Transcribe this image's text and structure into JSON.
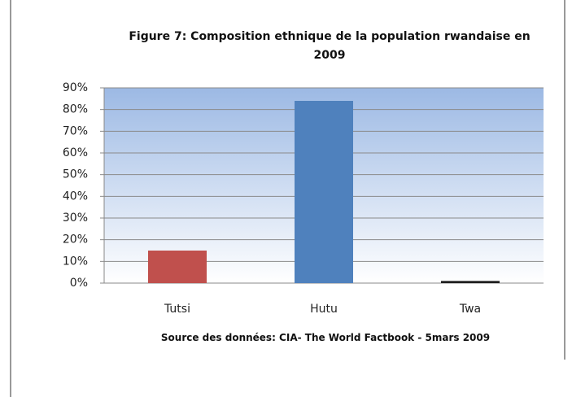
{
  "chart_data": {
    "type": "bar",
    "title": "Figure 7: Composition ethnique de la population rwandaise en 2009",
    "source": "Source des données: CIA- The World Factbook - 5mars 2009",
    "categories": [
      "Tutsi",
      "Hutu",
      "Twa"
    ],
    "values": [
      15,
      84,
      1
    ],
    "colors": [
      "#c0504d",
      "#4f81bd",
      "#1f1f1f"
    ],
    "ylim": [
      0,
      90
    ],
    "yticks": [
      {
        "value": 0,
        "label": "0%"
      },
      {
        "value": 10,
        "label": "10%"
      },
      {
        "value": 20,
        "label": "20%"
      },
      {
        "value": 30,
        "label": "30%"
      },
      {
        "value": 40,
        "label": "40%"
      },
      {
        "value": 50,
        "label": "50%"
      },
      {
        "value": 60,
        "label": "60%"
      },
      {
        "value": 70,
        "label": "70%"
      },
      {
        "value": 80,
        "label": "80%"
      },
      {
        "value": 90,
        "label": "90%"
      }
    ],
    "grid": true
  }
}
